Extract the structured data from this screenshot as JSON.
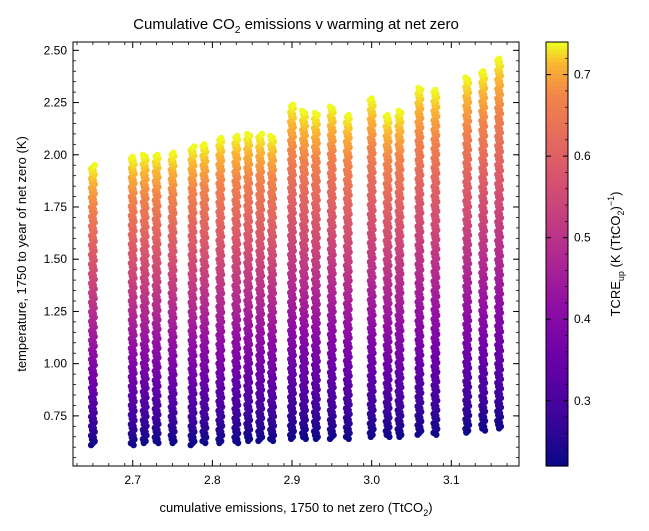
{
  "chart_data": {
    "type": "scatter",
    "title_prefix": "Cumulative CO",
    "title_sub": "2",
    "title_suffix": " emissions v warming at net zero",
    "xlabel_prefix": "cumulative emissions, 1750 to net zero (TtCO",
    "xlabel_sub": "2",
    "xlabel_suffix": ")",
    "ylabel": "temperature, 1750 to year of net zero (K)",
    "colorbar_label_prefix": "TCRE",
    "colorbar_label_sub": "up",
    "colorbar_label_mid": " (K (TtCO",
    "colorbar_label_sub2": "2",
    "colorbar_label_suffix": ")",
    "colorbar_label_sup": "−1",
    "colorbar_label_close": ")",
    "xlim": [
      2.625,
      3.185
    ],
    "ylim": [
      0.51,
      2.54
    ],
    "clim": [
      0.22,
      0.74
    ],
    "x_ticks": [
      2.7,
      2.8,
      2.9,
      3.0,
      3.1
    ],
    "x_tick_labels": [
      "2.7",
      "2.8",
      "2.9",
      "3.0",
      "3.1"
    ],
    "y_ticks": [
      0.75,
      1.0,
      1.25,
      1.5,
      1.75,
      2.0,
      2.25,
      2.5
    ],
    "y_tick_labels": [
      "0.75",
      "1.00",
      "1.25",
      "1.50",
      "1.75",
      "2.00",
      "2.25",
      "2.50"
    ],
    "c_ticks": [
      0.3,
      0.4,
      0.5,
      0.6,
      0.7
    ],
    "c_tick_labels": [
      "0.3",
      "0.4",
      "0.5",
      "0.6",
      "0.7"
    ],
    "colormap": "plasma",
    "grid": false,
    "columns": [
      {
        "x": 2.65,
        "ymin": 0.61,
        "ymax": 1.95
      },
      {
        "x": 2.7,
        "ymin": 0.61,
        "ymax": 1.99
      },
      {
        "x": 2.715,
        "ymin": 0.62,
        "ymax": 2.0
      },
      {
        "x": 2.73,
        "ymin": 0.62,
        "ymax": 2.0
      },
      {
        "x": 2.75,
        "ymin": 0.62,
        "ymax": 2.01
      },
      {
        "x": 2.775,
        "ymin": 0.61,
        "ymax": 2.04
      },
      {
        "x": 2.79,
        "ymin": 0.62,
        "ymax": 2.05
      },
      {
        "x": 2.81,
        "ymin": 0.62,
        "ymax": 2.08
      },
      {
        "x": 2.83,
        "ymin": 0.62,
        "ymax": 2.09
      },
      {
        "x": 2.845,
        "ymin": 0.63,
        "ymax": 2.1
      },
      {
        "x": 2.86,
        "ymin": 0.63,
        "ymax": 2.1
      },
      {
        "x": 2.875,
        "ymin": 0.63,
        "ymax": 2.09
      },
      {
        "x": 2.9,
        "ymin": 0.64,
        "ymax": 2.24
      },
      {
        "x": 2.915,
        "ymin": 0.64,
        "ymax": 2.21
      },
      {
        "x": 2.93,
        "ymin": 0.64,
        "ymax": 2.2
      },
      {
        "x": 2.95,
        "ymin": 0.64,
        "ymax": 2.23
      },
      {
        "x": 2.97,
        "ymin": 0.64,
        "ymax": 2.19
      },
      {
        "x": 3.0,
        "ymin": 0.65,
        "ymax": 2.27
      },
      {
        "x": 3.02,
        "ymin": 0.65,
        "ymax": 2.19
      },
      {
        "x": 3.035,
        "ymin": 0.65,
        "ymax": 2.21
      },
      {
        "x": 3.06,
        "ymin": 0.66,
        "ymax": 2.32
      },
      {
        "x": 3.08,
        "ymin": 0.66,
        "ymax": 2.31
      },
      {
        "x": 3.12,
        "ymin": 0.67,
        "ymax": 2.37
      },
      {
        "x": 3.14,
        "ymin": 0.68,
        "ymax": 2.4
      },
      {
        "x": 3.16,
        "ymin": 0.69,
        "ymax": 2.46
      }
    ]
  }
}
